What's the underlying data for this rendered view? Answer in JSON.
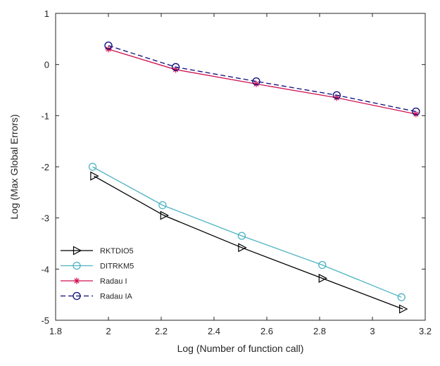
{
  "chart_data": {
    "type": "line",
    "title": "",
    "xlabel": "Log (Number of function call)",
    "ylabel": "Log (Max Global Errors)",
    "xlim": [
      1.8,
      3.2
    ],
    "ylim": [
      -5,
      1
    ],
    "xticks": [
      "1.8",
      "2",
      "2.2",
      "2.4",
      "2.6",
      "2.8",
      "3",
      "3.2"
    ],
    "yticks": [
      "-5",
      "-4",
      "-3",
      "-2",
      "-1",
      "0",
      "1"
    ],
    "grid": false,
    "legend_position": "bottom-left",
    "series": [
      {
        "name": "RKTDIO5",
        "color": "#000000",
        "marker": "triangle-right",
        "dash": "solid",
        "x": [
          1.945,
          2.21,
          2.505,
          2.81,
          3.115
        ],
        "y": [
          -2.18,
          -2.95,
          -3.58,
          -4.18,
          -4.78
        ]
      },
      {
        "name": "DITRKM5",
        "color": "#4db3c2",
        "marker": "circle",
        "dash": "solid",
        "x": [
          1.94,
          2.205,
          2.505,
          2.81,
          3.11
        ],
        "y": [
          -2.0,
          -2.75,
          -3.35,
          -3.92,
          -4.55
        ]
      },
      {
        "name": "Radau I",
        "color": "#d01050",
        "marker": "star",
        "dash": "solid",
        "x": [
          2.0,
          2.255,
          2.56,
          2.865,
          3.165
        ],
        "y": [
          0.3,
          -0.1,
          -0.38,
          -0.65,
          -0.97
        ]
      },
      {
        "name": "Radau IA",
        "color": "#0a0a7a",
        "marker": "circle",
        "dash": "dashed",
        "x": [
          2.0,
          2.255,
          2.56,
          2.865,
          3.165
        ],
        "y": [
          0.37,
          -0.05,
          -0.33,
          -0.6,
          -0.92
        ]
      }
    ]
  }
}
